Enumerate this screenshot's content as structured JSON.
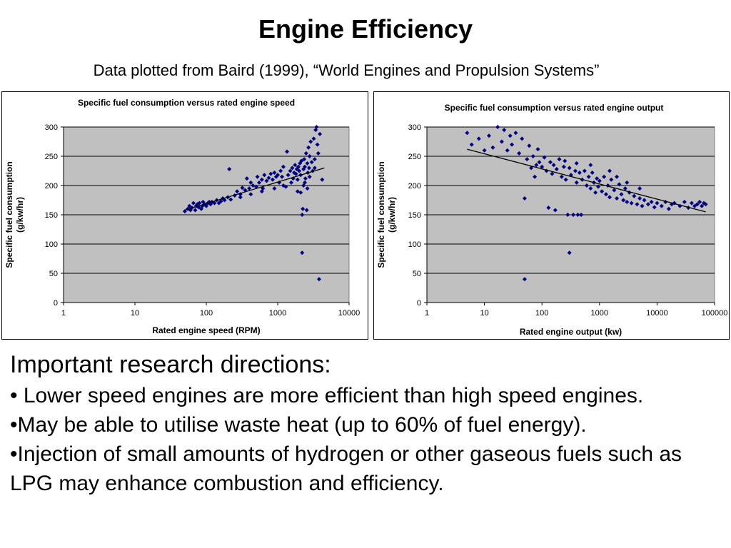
{
  "slide": {
    "title": "Engine Efficiency",
    "subtitle": "Data plotted from Baird (1999), “World Engines and Propulsion Systems”"
  },
  "content": {
    "heading": "Important research directions:",
    "bullets": [
      " Lower speed engines are more efficient than high speed engines.",
      "May be able to utilise waste heat (up to 60% of fuel energy).",
      "Injection of small amounts of hydrogen or other gaseous fuels such as LPG may enhance combustion and efficiency."
    ]
  },
  "colors": {
    "plot_background": "#c0c0c0",
    "marker": "#000080",
    "trendline": "#000000"
  },
  "chart_data": [
    {
      "type": "scatter",
      "title": "Specific fuel consumption versus rated engine speed",
      "xlabel": "Rated engine speed (RPM)",
      "ylabel": "Specific fuel consumption (g/kw/hr)",
      "xscale": "log",
      "xlim": [
        1,
        10000
      ],
      "ylim": [
        0,
        300
      ],
      "xticks": [
        "1",
        "10",
        "100",
        "1000",
        "10000"
      ],
      "yticks": [
        "0",
        "50",
        "100",
        "150",
        "200",
        "250",
        "300"
      ],
      "grid": true,
      "marker": "diamond",
      "trendline": [
        [
          50,
          158
        ],
        [
          4500,
          230
        ]
      ],
      "points": [
        [
          50,
          156
        ],
        [
          55,
          160
        ],
        [
          58,
          165
        ],
        [
          60,
          158
        ],
        [
          63,
          162
        ],
        [
          66,
          170
        ],
        [
          70,
          158
        ],
        [
          72,
          165
        ],
        [
          75,
          168
        ],
        [
          78,
          163
        ],
        [
          80,
          170
        ],
        [
          85,
          160
        ],
        [
          88,
          165
        ],
        [
          90,
          172
        ],
        [
          95,
          168
        ],
        [
          100,
          165
        ],
        [
          105,
          170
        ],
        [
          110,
          172
        ],
        [
          115,
          168
        ],
        [
          120,
          172
        ],
        [
          130,
          170
        ],
        [
          140,
          175
        ],
        [
          150,
          170
        ],
        [
          160,
          173
        ],
        [
          170,
          178
        ],
        [
          180,
          175
        ],
        [
          200,
          180
        ],
        [
          210,
          228
        ],
        [
          220,
          176
        ],
        [
          250,
          183
        ],
        [
          270,
          190
        ],
        [
          300,
          185
        ],
        [
          320,
          196
        ],
        [
          350,
          192
        ],
        [
          370,
          212
        ],
        [
          400,
          195
        ],
        [
          420,
          205
        ],
        [
          450,
          200
        ],
        [
          500,
          198
        ],
        [
          520,
          215
        ],
        [
          550,
          205
        ],
        [
          600,
          210
        ],
        [
          620,
          195
        ],
        [
          650,
          218
        ],
        [
          700,
          208
        ],
        [
          750,
          213
        ],
        [
          800,
          220
        ],
        [
          850,
          210
        ],
        [
          900,
          222
        ],
        [
          950,
          215
        ],
        [
          1000,
          218
        ],
        [
          1050,
          205
        ],
        [
          1100,
          225
        ],
        [
          1150,
          215
        ],
        [
          1200,
          232
        ],
        [
          1300,
          198
        ],
        [
          1350,
          258
        ],
        [
          1400,
          218
        ],
        [
          1500,
          225
        ],
        [
          1550,
          205
        ],
        [
          1600,
          230
        ],
        [
          1650,
          212
        ],
        [
          1700,
          222
        ],
        [
          1750,
          235
        ],
        [
          1800,
          220
        ],
        [
          1850,
          228
        ],
        [
          1900,
          210
        ],
        [
          1950,
          232
        ],
        [
          2000,
          225
        ],
        [
          2050,
          238
        ],
        [
          2100,
          218
        ],
        [
          2150,
          242
        ],
        [
          2200,
          85
        ],
        [
          2200,
          150
        ],
        [
          2250,
          160
        ],
        [
          2300,
          228
        ],
        [
          2350,
          245
        ],
        [
          2400,
          232
        ],
        [
          2450,
          212
        ],
        [
          2500,
          255
        ],
        [
          2550,
          158
        ],
        [
          2600,
          238
        ],
        [
          2650,
          222
        ],
        [
          2700,
          265
        ],
        [
          2750,
          230
        ],
        [
          2800,
          250
        ],
        [
          2900,
          275
        ],
        [
          3000,
          240
        ],
        [
          3100,
          225
        ],
        [
          3200,
          280
        ],
        [
          3300,
          245
        ],
        [
          3400,
          295
        ],
        [
          3500,
          300
        ],
        [
          3600,
          270
        ],
        [
          3700,
          255
        ],
        [
          3800,
          40
        ],
        [
          3900,
          288
        ],
        [
          4200,
          210
        ],
        [
          2300,
          200
        ],
        [
          2600,
          195
        ],
        [
          1900,
          190
        ],
        [
          2100,
          188
        ],
        [
          2400,
          205
        ],
        [
          2800,
          215
        ],
        [
          3300,
          230
        ],
        [
          1200,
          200
        ],
        [
          900,
          195
        ],
        [
          600,
          190
        ],
        [
          420,
          185
        ],
        [
          300,
          180
        ]
      ]
    },
    {
      "type": "scatter",
      "title": "Specific fuel consumption versus rated engine output",
      "xlabel": "Rated engine output (kw)",
      "ylabel": "Specific fuel consumption (g/kw/hr)",
      "xscale": "log",
      "xlim": [
        1,
        100000
      ],
      "ylim": [
        0,
        300
      ],
      "xticks": [
        "1",
        "10",
        "100",
        "1000",
        "10000",
        "100000"
      ],
      "yticks": [
        "0",
        "50",
        "100",
        "150",
        "200",
        "250",
        "300"
      ],
      "grid": true,
      "marker": "diamond",
      "trendline": [
        [
          5,
          262
        ],
        [
          70000,
          155
        ]
      ],
      "points": [
        [
          5,
          290
        ],
        [
          6,
          270
        ],
        [
          8,
          280
        ],
        [
          10,
          260
        ],
        [
          12,
          285
        ],
        [
          14,
          265
        ],
        [
          17,
          300
        ],
        [
          20,
          275
        ],
        [
          22,
          295
        ],
        [
          25,
          260
        ],
        [
          28,
          285
        ],
        [
          30,
          270
        ],
        [
          35,
          290
        ],
        [
          40,
          255
        ],
        [
          45,
          280
        ],
        [
          50,
          40
        ],
        [
          50,
          178
        ],
        [
          55,
          245
        ],
        [
          60,
          268
        ],
        [
          65,
          230
        ],
        [
          70,
          250
        ],
        [
          75,
          215
        ],
        [
          80,
          235
        ],
        [
          85,
          262
        ],
        [
          90,
          240
        ],
        [
          100,
          232
        ],
        [
          110,
          248
        ],
        [
          120,
          225
        ],
        [
          130,
          162
        ],
        [
          140,
          240
        ],
        [
          150,
          220
        ],
        [
          160,
          235
        ],
        [
          170,
          158
        ],
        [
          180,
          228
        ],
        [
          200,
          245
        ],
        [
          220,
          215
        ],
        [
          240,
          232
        ],
        [
          260,
          210
        ],
        [
          280,
          150
        ],
        [
          300,
          85
        ],
        [
          300,
          230
        ],
        [
          320,
          218
        ],
        [
          350,
          150
        ],
        [
          380,
          225
        ],
        [
          400,
          205
        ],
        [
          420,
          150
        ],
        [
          450,
          222
        ],
        [
          480,
          150
        ],
        [
          500,
          210
        ],
        [
          550,
          225
        ],
        [
          600,
          200
        ],
        [
          650,
          215
        ],
        [
          700,
          195
        ],
        [
          750,
          222
        ],
        [
          800,
          205
        ],
        [
          850,
          188
        ],
        [
          900,
          212
        ],
        [
          950,
          198
        ],
        [
          1000,
          208
        ],
        [
          1100,
          190
        ],
        [
          1200,
          215
        ],
        [
          1300,
          185
        ],
        [
          1400,
          200
        ],
        [
          1500,
          180
        ],
        [
          1600,
          210
        ],
        [
          1800,
          192
        ],
        [
          2000,
          178
        ],
        [
          2200,
          202
        ],
        [
          2400,
          185
        ],
        [
          2600,
          175
        ],
        [
          2800,
          195
        ],
        [
          3000,
          172
        ],
        [
          3300,
          188
        ],
        [
          3600,
          170
        ],
        [
          4000,
          182
        ],
        [
          4500,
          168
        ],
        [
          5000,
          178
        ],
        [
          5500,
          165
        ],
        [
          6000,
          175
        ],
        [
          7000,
          168
        ],
        [
          8000,
          172
        ],
        [
          9000,
          163
        ],
        [
          10000,
          170
        ],
        [
          12000,
          165
        ],
        [
          14000,
          172
        ],
        [
          16000,
          160
        ],
        [
          18000,
          168
        ],
        [
          20000,
          170
        ],
        [
          25000,
          165
        ],
        [
          30000,
          172
        ],
        [
          35000,
          162
        ],
        [
          40000,
          170
        ],
        [
          45000,
          165
        ],
        [
          50000,
          168
        ],
        [
          55000,
          172
        ],
        [
          60000,
          165
        ],
        [
          65000,
          170
        ],
        [
          70000,
          168
        ],
        [
          3000,
          205
        ],
        [
          5000,
          195
        ],
        [
          2000,
          215
        ],
        [
          1500,
          225
        ],
        [
          700,
          235
        ],
        [
          400,
          238
        ],
        [
          250,
          242
        ]
      ]
    }
  ]
}
